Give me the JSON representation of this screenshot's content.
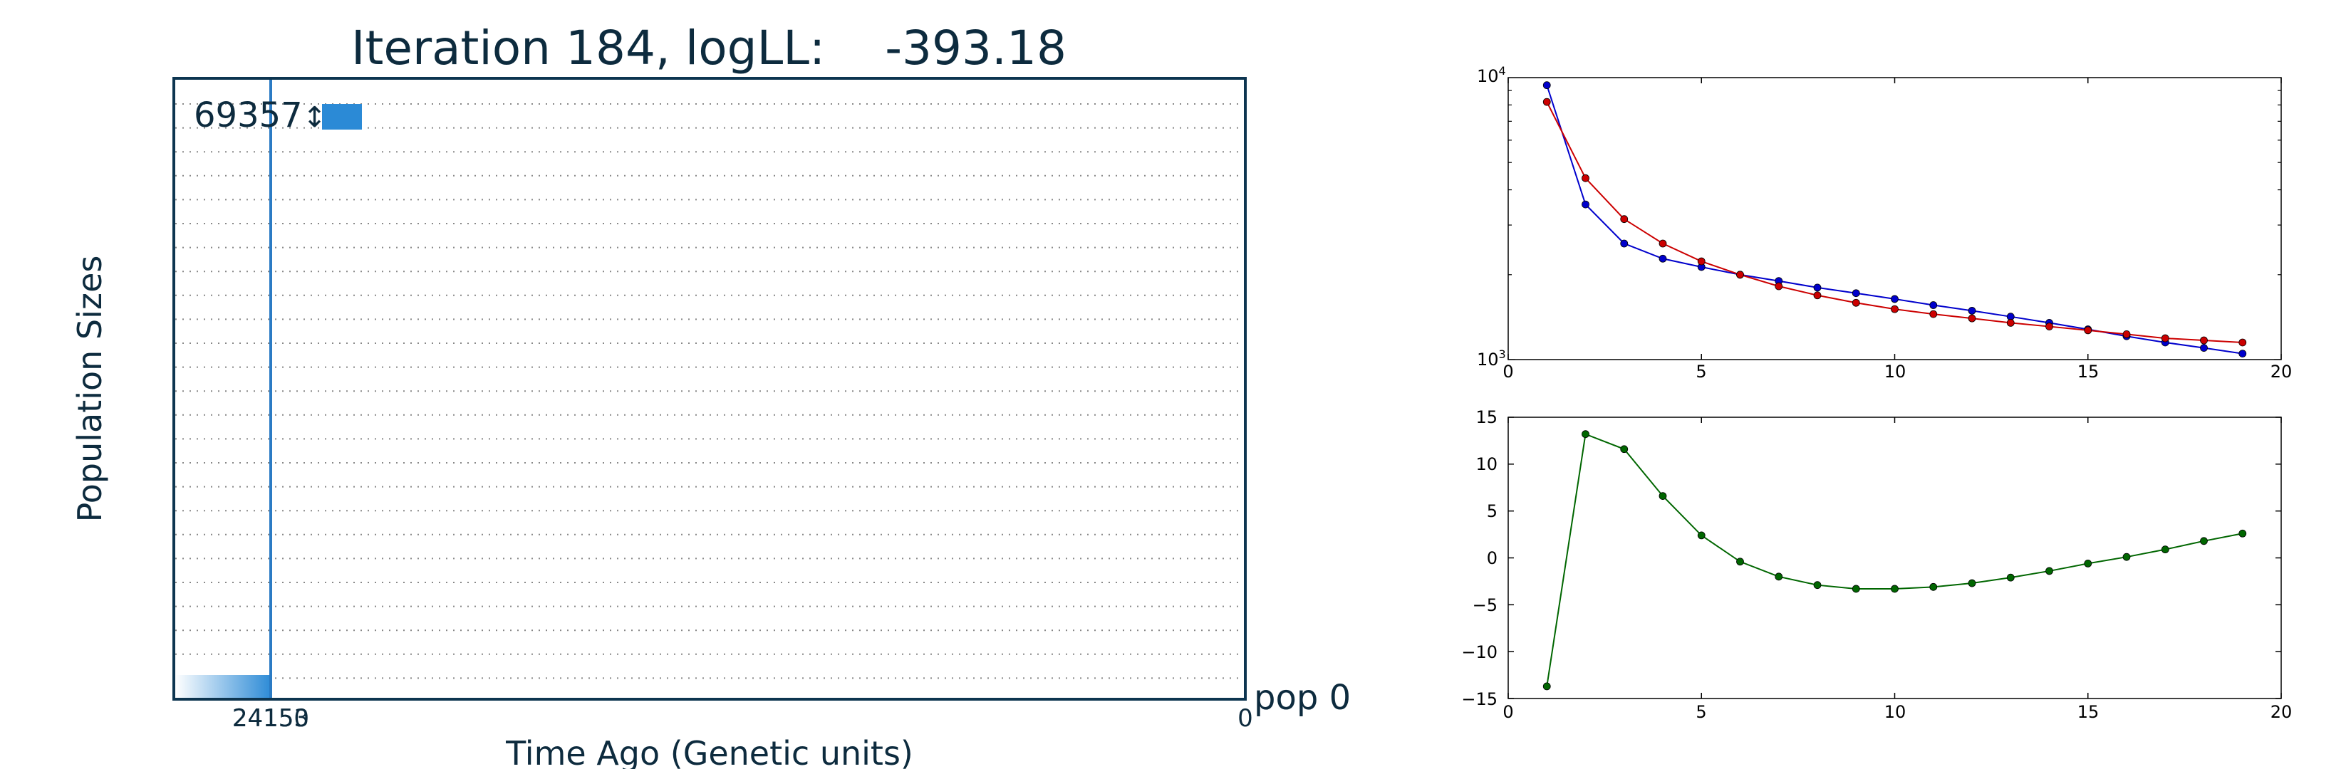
{
  "chart_data": [
    {
      "type": "area",
      "title": "Iteration 184, logLL:    -393.18",
      "xlabel": "Time Ago (Genetic units)",
      "ylabel": "Population Sizes",
      "x_ticks": [
        "24150",
        "24153",
        "0"
      ],
      "population_label": "pop 0",
      "size_annotation": "69357",
      "size_annotation_suffix": "↕",
      "grid": "dotted horizontal",
      "colors": {
        "axis": "#0d3550",
        "text": "#0d2b3e",
        "fill": "#2b8ad6",
        "grid": "#888888"
      }
    },
    {
      "type": "line",
      "y_scale": "log",
      "xlim": [
        0,
        20
      ],
      "ylim": [
        1000,
        10000
      ],
      "x_ticks": [
        "0",
        "5",
        "10",
        "15",
        "20"
      ],
      "y_tick_bases": [
        "10",
        "10"
      ],
      "y_tick_exponents": [
        "3",
        "4"
      ],
      "x": [
        1,
        2,
        3,
        4,
        5,
        6,
        7,
        8,
        9,
        10,
        11,
        12,
        13,
        14,
        15,
        16,
        17,
        18,
        19
      ],
      "series": [
        {
          "color": "#0000cc",
          "values": [
            9400,
            3550,
            2580,
            2280,
            2130,
            2000,
            1900,
            1800,
            1720,
            1640,
            1560,
            1490,
            1420,
            1350,
            1280,
            1210,
            1150,
            1100,
            1050
          ]
        },
        {
          "color": "#cc0000",
          "values": [
            8200,
            4400,
            3150,
            2580,
            2230,
            2000,
            1820,
            1690,
            1590,
            1510,
            1450,
            1400,
            1350,
            1310,
            1270,
            1230,
            1190,
            1170,
            1150
          ]
        }
      ]
    },
    {
      "type": "line",
      "xlim": [
        0,
        20
      ],
      "ylim": [
        -15,
        15
      ],
      "x_ticks": [
        "0",
        "5",
        "10",
        "15",
        "20"
      ],
      "y_ticks": [
        "15",
        "10",
        "5",
        "0",
        "−5",
        "−10",
        "−15"
      ],
      "x": [
        1,
        2,
        3,
        4,
        5,
        6,
        7,
        8,
        9,
        10,
        11,
        12,
        13,
        14,
        15,
        16,
        17,
        18,
        19
      ],
      "series": [
        {
          "color": "#006600",
          "values": [
            -13.7,
            13.2,
            11.6,
            6.6,
            2.4,
            -0.4,
            -2.0,
            -2.9,
            -3.3,
            -3.3,
            -3.1,
            -2.7,
            -2.1,
            -1.4,
            -0.6,
            0.1,
            0.9,
            1.8,
            2.6
          ]
        }
      ]
    }
  ]
}
